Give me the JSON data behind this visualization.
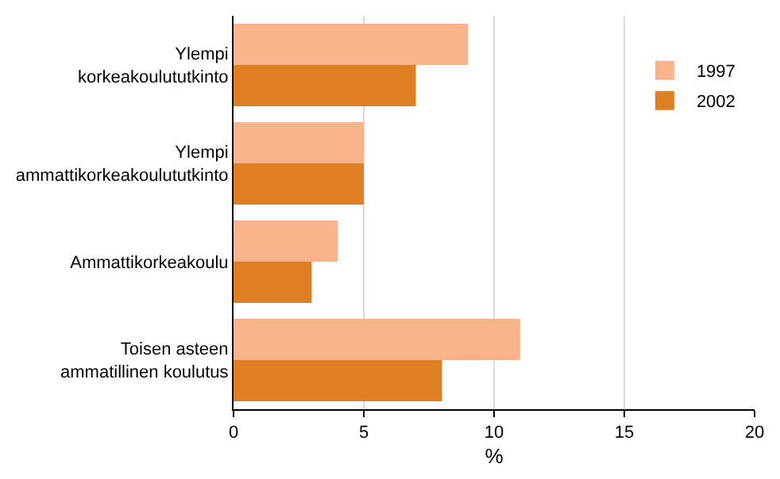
{
  "chart_data": {
    "type": "bar",
    "orientation": "horizontal",
    "categories": [
      "Ylempi korkeakoulututkinto",
      "Ylempi ammattikorkeakoulututkinto",
      "Ammattikorkeakoulu",
      "Toisen asteen ammatillinen koulutus"
    ],
    "series": [
      {
        "name": "1997",
        "color": "#f9b38a",
        "values": [
          9,
          5,
          4,
          11
        ]
      },
      {
        "name": "2002",
        "color": "#e07f22",
        "values": [
          7,
          5,
          3,
          8
        ]
      }
    ],
    "xlabel": "%",
    "xlim": [
      0,
      20
    ],
    "xticks": [
      0,
      5,
      10,
      15,
      20
    ],
    "grid": "x",
    "legend": "top right"
  }
}
